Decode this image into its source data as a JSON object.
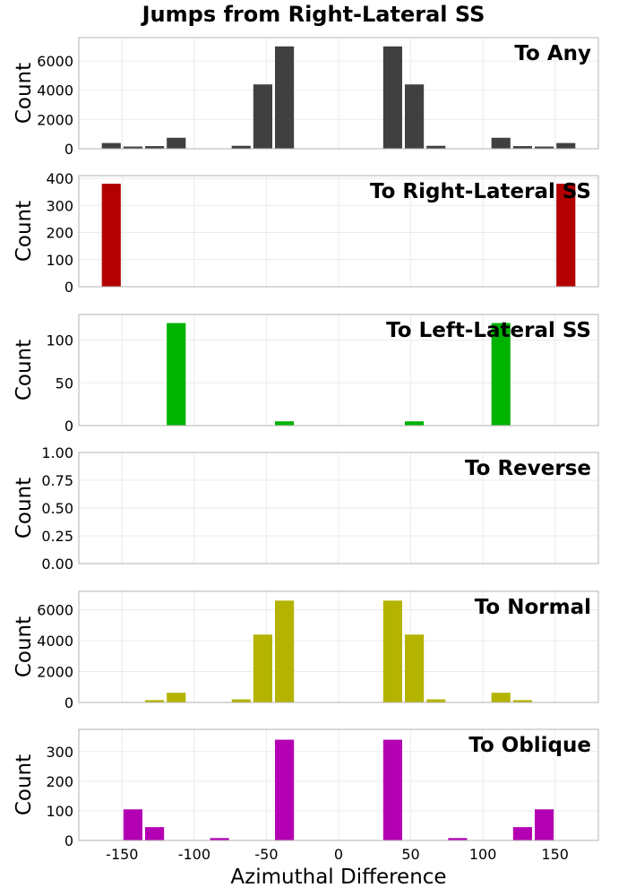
{
  "title": "Jumps from Right-Lateral SS",
  "xlabel": "Azimuthal Difference",
  "chart_data": {
    "type": "bar",
    "x_ticks": [
      -150,
      -100,
      -50,
      0,
      50,
      100,
      150
    ],
    "xlim": [
      -180,
      180
    ],
    "bin_width": 15,
    "bin_centers": [
      -157.5,
      -142.5,
      -127.5,
      -112.5,
      -97.5,
      -82.5,
      -67.5,
      -52.5,
      -37.5,
      -22.5,
      -7.5,
      7.5,
      22.5,
      37.5,
      52.5,
      67.5,
      82.5,
      97.5,
      112.5,
      127.5,
      142.5,
      157.5
    ],
    "grid": true,
    "ylabel": "Count",
    "panels": [
      {
        "name": "To Any",
        "color": "#404040",
        "ylim": [
          0,
          7600
        ],
        "yticks": [
          0,
          2000,
          4000,
          6000
        ],
        "values": [
          390,
          150,
          180,
          750,
          0,
          0,
          200,
          4400,
          7000,
          0,
          0,
          0,
          0,
          7000,
          4400,
          200,
          0,
          0,
          750,
          180,
          150,
          390
        ]
      },
      {
        "name": "To Right-Lateral SS",
        "color": "#b30000",
        "ylim": [
          0,
          410
        ],
        "yticks": [
          0,
          100,
          200,
          300,
          400
        ],
        "values": [
          380,
          0,
          0,
          0,
          0,
          0,
          0,
          0,
          0,
          0,
          0,
          0,
          0,
          0,
          0,
          0,
          0,
          0,
          0,
          0,
          0,
          380
        ]
      },
      {
        "name": "To Left-Lateral SS",
        "color": "#00b300",
        "ylim": [
          0,
          130
        ],
        "yticks": [
          0,
          50,
          100
        ],
        "values": [
          0,
          0,
          0,
          120,
          0,
          0,
          0,
          0,
          5,
          0,
          0,
          0,
          0,
          0,
          5,
          0,
          0,
          0,
          120,
          0,
          0,
          0
        ]
      },
      {
        "name": "To Reverse",
        "color": "#0000b3",
        "ylim": [
          0,
          1
        ],
        "yticks": [
          "0.00",
          "0.25",
          "0.50",
          "0.75",
          "1.00"
        ],
        "values": [
          0,
          0,
          0,
          0,
          0,
          0,
          0,
          0,
          0,
          0,
          0,
          0,
          0,
          0,
          0,
          0,
          0,
          0,
          0,
          0,
          0,
          0
        ]
      },
      {
        "name": "To Normal",
        "color": "#b3b300",
        "ylim": [
          0,
          7200
        ],
        "yticks": [
          0,
          2000,
          4000,
          6000
        ],
        "values": [
          0,
          0,
          150,
          630,
          0,
          0,
          200,
          4400,
          6600,
          0,
          0,
          0,
          0,
          6600,
          4400,
          200,
          0,
          0,
          630,
          150,
          0,
          0
        ]
      },
      {
        "name": "To Oblique",
        "color": "#b300b3",
        "ylim": [
          0,
          375
        ],
        "yticks": [
          0,
          100,
          200,
          300
        ],
        "values": [
          0,
          105,
          45,
          0,
          0,
          8,
          0,
          0,
          340,
          0,
          0,
          0,
          0,
          340,
          0,
          0,
          8,
          0,
          0,
          45,
          105,
          0
        ]
      }
    ]
  }
}
